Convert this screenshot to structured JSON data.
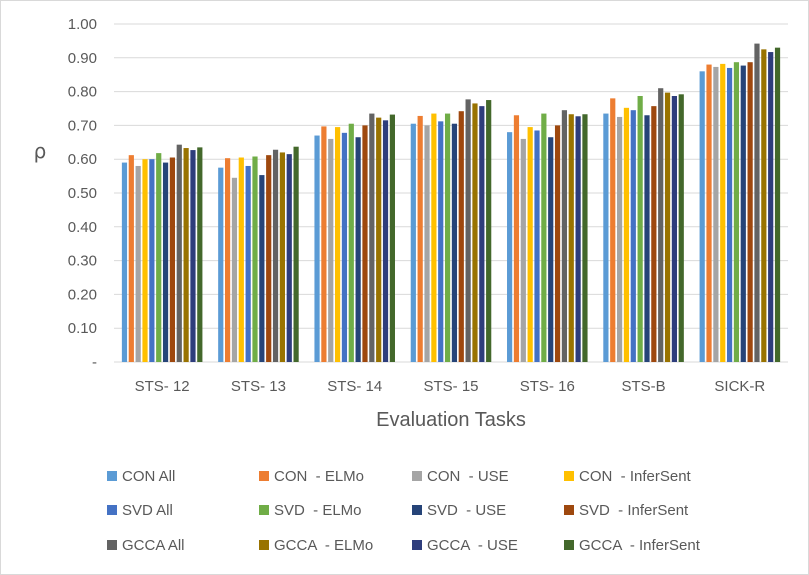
{
  "chart_data": {
    "type": "bar",
    "title": "",
    "xlabel": "Evaluation Tasks",
    "ylabel": "ρ",
    "ylim": [
      0,
      1.0
    ],
    "yticks": [
      "-",
      "0.10",
      "0.20",
      "0.30",
      "0.40",
      "0.50",
      "0.60",
      "0.70",
      "0.80",
      "0.90",
      "1.00"
    ],
    "grid": true,
    "legend_position": "bottom",
    "categories": [
      "STS- 12",
      "STS- 13",
      "STS- 14",
      "STS- 15",
      "STS- 16",
      "STS-B",
      "SICK-R"
    ],
    "series": [
      {
        "name": "CON All",
        "color": "#5B9BD5",
        "values": [
          0.59,
          0.575,
          0.67,
          0.705,
          0.68,
          0.735,
          0.86
        ]
      },
      {
        "name": "CON  - ELMo",
        "color": "#ED7D31",
        "values": [
          0.612,
          0.603,
          0.697,
          0.728,
          0.73,
          0.78,
          0.88
        ]
      },
      {
        "name": "CON  - USE",
        "color": "#A5A5A5",
        "values": [
          0.58,
          0.545,
          0.66,
          0.7,
          0.66,
          0.725,
          0.873
        ]
      },
      {
        "name": "CON  - InferSent",
        "color": "#FFC000",
        "values": [
          0.6,
          0.605,
          0.695,
          0.735,
          0.695,
          0.752,
          0.882
        ]
      },
      {
        "name": "SVD All",
        "color": "#4472C4",
        "values": [
          0.6,
          0.58,
          0.678,
          0.712,
          0.685,
          0.745,
          0.87
        ]
      },
      {
        "name": "SVD  - ELMo",
        "color": "#70AD47",
        "values": [
          0.618,
          0.608,
          0.705,
          0.735,
          0.735,
          0.787,
          0.887
        ]
      },
      {
        "name": "SVD  - USE",
        "color": "#264478",
        "values": [
          0.59,
          0.553,
          0.665,
          0.705,
          0.665,
          0.73,
          0.877
        ]
      },
      {
        "name": "SVD  - InferSent",
        "color": "#9E480E",
        "values": [
          0.605,
          0.612,
          0.7,
          0.742,
          0.7,
          0.757,
          0.887
        ]
      },
      {
        "name": "GCCA All",
        "color": "#636363",
        "values": [
          0.643,
          0.628,
          0.735,
          0.777,
          0.745,
          0.81,
          0.942
        ]
      },
      {
        "name": "GCCA  - ELMo",
        "color": "#997300",
        "values": [
          0.633,
          0.62,
          0.723,
          0.765,
          0.733,
          0.797,
          0.925
        ]
      },
      {
        "name": "GCCA  - USE",
        "color": "#2E3D7C",
        "values": [
          0.627,
          0.615,
          0.715,
          0.757,
          0.727,
          0.787,
          0.917
        ]
      },
      {
        "name": "GCCA  - InferSent",
        "color": "#43682B",
        "values": [
          0.635,
          0.637,
          0.732,
          0.775,
          0.733,
          0.792,
          0.93
        ]
      }
    ]
  }
}
